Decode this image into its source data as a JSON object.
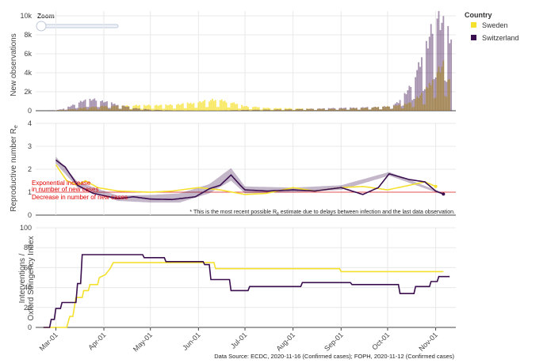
{
  "zoom": {
    "label": "Zoom"
  },
  "legend": {
    "title": "Country",
    "items": [
      {
        "label": "Sweden",
        "color": "#f5e02e"
      },
      {
        "label": "Switzerland",
        "color": "#3b0f4f"
      }
    ]
  },
  "annotations": {
    "exponential": [
      "Exponential increase",
      "in number of new cases"
    ],
    "decrease": "Decrease in number of new cases",
    "re_note_prefix": "* This is the most recent possible R",
    "re_note_sub": "e",
    "re_note_suffix": " estimate due to delays between infection and the last data observation."
  },
  "source": "Data Source: ECDC, 2020-11-16 (Confirmed cases); FOPH, 2020-11-12 (Confirmed cases)",
  "chart_data": [
    {
      "type": "bar",
      "ylabel": "New observations",
      "ylim": [
        0,
        10500
      ],
      "yticks": [
        0,
        2000,
        4000,
        6000,
        8000,
        10000
      ],
      "ytick_labels": [
        "0",
        "2k",
        "4k",
        "6k",
        "8k",
        "10k"
      ],
      "x_range": [
        "2020-02-17",
        "2020-11-14"
      ],
      "series": [
        {
          "name": "Sweden",
          "color": "#f5e02e",
          "points": [
            [
              "2020-03-01",
              40
            ],
            [
              "2020-03-10",
              150
            ],
            [
              "2020-03-20",
              350
            ],
            [
              "2020-04-01",
              500
            ],
            [
              "2020-04-15",
              550
            ],
            [
              "2020-05-01",
              600
            ],
            [
              "2020-05-15",
              620
            ],
            [
              "2020-06-01",
              900
            ],
            [
              "2020-06-10",
              1200
            ],
            [
              "2020-06-20",
              1000
            ],
            [
              "2020-07-01",
              500
            ],
            [
              "2020-07-15",
              300
            ],
            [
              "2020-08-01",
              250
            ],
            [
              "2020-08-15",
              200
            ],
            [
              "2020-09-01",
              200
            ],
            [
              "2020-09-15",
              300
            ],
            [
              "2020-10-01",
              450
            ],
            [
              "2020-10-15",
              800
            ],
            [
              "2020-10-25",
              2000
            ],
            [
              "2020-11-01",
              4000
            ],
            [
              "2020-11-06",
              4800
            ],
            [
              "2020-11-10",
              3500
            ]
          ]
        },
        {
          "name": "Switzerland",
          "color": "#3b0f4f",
          "points": [
            [
              "2020-02-25",
              0
            ],
            [
              "2020-03-05",
              150
            ],
            [
              "2020-03-12",
              600
            ],
            [
              "2020-03-18",
              1100
            ],
            [
              "2020-03-25",
              1200
            ],
            [
              "2020-04-01",
              1000
            ],
            [
              "2020-04-10",
              650
            ],
            [
              "2020-04-20",
              300
            ],
            [
              "2020-05-01",
              120
            ],
            [
              "2020-05-15",
              40
            ],
            [
              "2020-06-01",
              20
            ],
            [
              "2020-06-15",
              25
            ],
            [
              "2020-07-01",
              90
            ],
            [
              "2020-07-15",
              120
            ],
            [
              "2020-08-01",
              160
            ],
            [
              "2020-08-15",
              220
            ],
            [
              "2020-09-01",
              300
            ],
            [
              "2020-09-15",
              350
            ],
            [
              "2020-10-01",
              450
            ],
            [
              "2020-10-08",
              900
            ],
            [
              "2020-10-15",
              2500
            ],
            [
              "2020-10-22",
              5000
            ],
            [
              "2020-10-28",
              8000
            ],
            [
              "2020-11-02",
              10500
            ],
            [
              "2020-11-06",
              9500
            ],
            [
              "2020-11-11",
              7500
            ]
          ]
        }
      ]
    },
    {
      "type": "line",
      "ylabel": "Reproductive number R",
      "ylabel_sub": "e",
      "ylim": [
        0,
        4
      ],
      "yticks": [
        0,
        1,
        2,
        3,
        4
      ],
      "ytick_labels": [
        "0",
        "1",
        "2",
        "3",
        "4"
      ],
      "reference_line": 1,
      "series": [
        {
          "name": "Sweden",
          "color": "#f5e02e",
          "points": [
            [
              "2020-03-01",
              2.2
            ],
            [
              "2020-03-08",
              1.5
            ],
            [
              "2020-03-15",
              1.3
            ],
            [
              "2020-03-20",
              1.5
            ],
            [
              "2020-03-28",
              1.2
            ],
            [
              "2020-04-10",
              1.05
            ],
            [
              "2020-05-01",
              1.0
            ],
            [
              "2020-05-15",
              1.05
            ],
            [
              "2020-06-01",
              1.2
            ],
            [
              "2020-06-15",
              1.1
            ],
            [
              "2020-07-01",
              0.9
            ],
            [
              "2020-07-15",
              0.95
            ],
            [
              "2020-08-01",
              1.2
            ],
            [
              "2020-08-15",
              1.05
            ],
            [
              "2020-09-01",
              1.2
            ],
            [
              "2020-09-15",
              1.25
            ],
            [
              "2020-10-01",
              1.1
            ],
            [
              "2020-10-15",
              1.3
            ],
            [
              "2020-10-25",
              1.45
            ],
            [
              "2020-11-01",
              1.25
            ]
          ]
        },
        {
          "name": "Switzerland",
          "color": "#3b0f4f",
          "points": [
            [
              "2020-03-01",
              2.4
            ],
            [
              "2020-03-07",
              2.1
            ],
            [
              "2020-03-15",
              1.3
            ],
            [
              "2020-03-25",
              0.95
            ],
            [
              "2020-04-10",
              0.72
            ],
            [
              "2020-04-20",
              0.8
            ],
            [
              "2020-05-01",
              0.7
            ],
            [
              "2020-05-15",
              0.68
            ],
            [
              "2020-05-30",
              0.8
            ],
            [
              "2020-06-08",
              1.15
            ],
            [
              "2020-06-15",
              1.3
            ],
            [
              "2020-06-22",
              1.75
            ],
            [
              "2020-06-28",
              1.3
            ],
            [
              "2020-07-01",
              1.1
            ],
            [
              "2020-07-15",
              1.05
            ],
            [
              "2020-08-01",
              1.1
            ],
            [
              "2020-08-15",
              1.05
            ],
            [
              "2020-09-01",
              1.2
            ],
            [
              "2020-09-15",
              0.9
            ],
            [
              "2020-09-25",
              1.2
            ],
            [
              "2020-10-02",
              1.8
            ],
            [
              "2020-10-15",
              1.55
            ],
            [
              "2020-10-25",
              1.45
            ],
            [
              "2020-11-01",
              1.05
            ],
            [
              "2020-11-06",
              0.92
            ]
          ],
          "band": [
            [
              "2020-03-01",
              2.25,
              2.55
            ],
            [
              "2020-03-15",
              1.2,
              1.45
            ],
            [
              "2020-04-10",
              0.62,
              0.85
            ],
            [
              "2020-05-01",
              0.55,
              0.88
            ],
            [
              "2020-05-20",
              0.55,
              0.95
            ],
            [
              "2020-06-08",
              0.95,
              1.35
            ],
            [
              "2020-06-22",
              1.5,
              2.05
            ],
            [
              "2020-07-01",
              0.95,
              1.25
            ],
            [
              "2020-08-01",
              1.0,
              1.2
            ],
            [
              "2020-09-01",
              1.1,
              1.3
            ],
            [
              "2020-10-02",
              1.72,
              1.88
            ],
            [
              "2020-11-06",
              0.88,
              0.96
            ]
          ]
        }
      ]
    },
    {
      "type": "line",
      "ylabel": [
        "Interventions /",
        "Oxford Stringency Index"
      ],
      "ylim": [
        0,
        100
      ],
      "yticks": [
        0,
        20,
        40,
        60,
        80,
        100
      ],
      "ytick_labels": [
        "0",
        "20",
        "40",
        "60",
        "80",
        "100"
      ],
      "xticks": [
        "2020-03-01",
        "2020-04-01",
        "2020-05-01",
        "2020-06-01",
        "2020-07-01",
        "2020-08-01",
        "2020-09-01",
        "2020-10-01",
        "2020-11-01"
      ],
      "xtick_labels": [
        "Mar-01",
        "Apr-01",
        "May-01",
        "Jun-01",
        "Jul-01",
        "Aug-01",
        "Sep-01",
        "Oct-01",
        "Nov-01"
      ],
      "series": [
        {
          "name": "Sweden",
          "color": "#f5e02e",
          "points": [
            [
              "2020-02-22",
              0
            ],
            [
              "2020-03-08",
              0
            ],
            [
              "2020-03-10",
              11
            ],
            [
              "2020-03-12",
              11
            ],
            [
              "2020-03-14",
              30
            ],
            [
              "2020-03-18",
              30
            ],
            [
              "2020-03-19",
              37
            ],
            [
              "2020-03-22",
              37
            ],
            [
              "2020-03-23",
              43
            ],
            [
              "2020-03-28",
              43
            ],
            [
              "2020-03-29",
              50
            ],
            [
              "2020-04-02",
              53
            ],
            [
              "2020-04-05",
              59
            ],
            [
              "2020-04-07",
              65
            ],
            [
              "2020-06-11",
              65
            ],
            [
              "2020-06-12",
              59
            ],
            [
              "2020-08-31",
              59
            ],
            [
              "2020-09-01",
              56
            ],
            [
              "2020-11-06",
              56
            ]
          ]
        },
        {
          "name": "Switzerland",
          "color": "#3b0f4f",
          "points": [
            [
              "2020-02-22",
              0
            ],
            [
              "2020-02-26",
              0
            ],
            [
              "2020-02-27",
              8
            ],
            [
              "2020-02-29",
              8
            ],
            [
              "2020-03-01",
              19
            ],
            [
              "2020-03-04",
              19
            ],
            [
              "2020-03-05",
              25
            ],
            [
              "2020-03-14",
              25
            ],
            [
              "2020-03-15",
              44
            ],
            [
              "2020-03-17",
              44
            ],
            [
              "2020-03-18",
              73
            ],
            [
              "2020-04-26",
              73
            ],
            [
              "2020-04-27",
              70
            ],
            [
              "2020-05-10",
              70
            ],
            [
              "2020-05-11",
              66
            ],
            [
              "2020-06-04",
              66
            ],
            [
              "2020-06-05",
              63
            ],
            [
              "2020-06-08",
              63
            ],
            [
              "2020-06-09",
              48
            ],
            [
              "2020-06-21",
              48
            ],
            [
              "2020-06-22",
              37
            ],
            [
              "2020-07-03",
              37
            ],
            [
              "2020-07-04",
              41
            ],
            [
              "2020-08-06",
              41
            ],
            [
              "2020-08-07",
              45
            ],
            [
              "2020-09-07",
              45
            ],
            [
              "2020-09-08",
              43
            ],
            [
              "2020-10-08",
              43
            ],
            [
              "2020-10-09",
              34
            ],
            [
              "2020-10-18",
              34
            ],
            [
              "2020-10-19",
              41
            ],
            [
              "2020-10-28",
              41
            ],
            [
              "2020-10-29",
              46
            ],
            [
              "2020-11-02",
              46
            ],
            [
              "2020-11-03",
              51
            ],
            [
              "2020-11-10",
              51
            ]
          ]
        }
      ]
    }
  ]
}
